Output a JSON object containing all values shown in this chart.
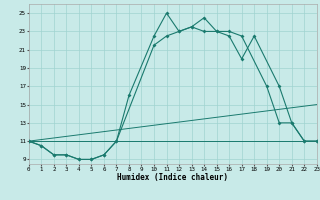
{
  "bg_color": "#c8eae8",
  "grid_color": "#a0d4d0",
  "line_color": "#1a7a6e",
  "xlim": [
    0,
    23
  ],
  "ylim": [
    8.5,
    26
  ],
  "xticks": [
    0,
    1,
    2,
    3,
    4,
    5,
    6,
    7,
    8,
    9,
    10,
    11,
    12,
    13,
    14,
    15,
    16,
    17,
    18,
    19,
    20,
    21,
    22,
    23
  ],
  "yticks": [
    9,
    11,
    13,
    15,
    17,
    19,
    21,
    23,
    25
  ],
  "xlabel": "Humidex (Indice chaleur)",
  "line1_x": [
    0,
    1,
    2,
    3,
    4,
    5,
    6,
    7,
    8,
    10,
    11,
    12,
    13,
    14,
    15,
    16,
    17,
    19,
    20,
    21,
    22,
    23
  ],
  "line1_y": [
    11,
    10.5,
    9.5,
    9.5,
    9,
    9,
    9.5,
    11,
    16,
    22.5,
    25,
    23,
    23.5,
    24.5,
    23,
    23,
    22.5,
    17,
    13,
    13,
    11,
    11
  ],
  "line2_x": [
    0,
    1,
    2,
    3,
    4,
    5,
    6,
    7,
    10,
    11,
    12,
    13,
    14,
    15,
    16,
    17,
    18,
    20,
    21,
    22,
    23
  ],
  "line2_y": [
    11,
    10.5,
    9.5,
    9.5,
    9,
    9,
    9.5,
    11,
    21.5,
    22.5,
    23,
    23.5,
    23,
    23,
    22.5,
    20,
    22.5,
    17,
    13,
    11,
    11
  ],
  "line3_x": [
    0,
    23
  ],
  "line3_y": [
    11,
    11
  ],
  "line4_x": [
    0,
    23
  ],
  "line4_y": [
    11,
    15
  ]
}
